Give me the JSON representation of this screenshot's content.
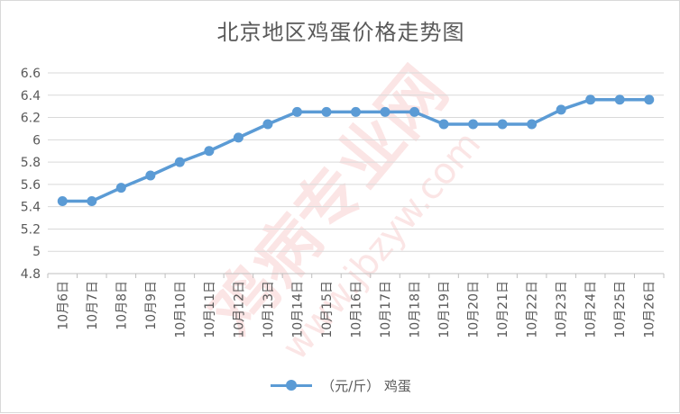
{
  "chart_data": {
    "type": "line",
    "title": "北京地区鸡蛋价格走势图",
    "categories": [
      "10月6日",
      "10月7日",
      "10月8日",
      "10月9日",
      "10月10日",
      "10月11日",
      "10月12日",
      "10月13日",
      "10月14日",
      "10月15日",
      "10月16日",
      "10月17日",
      "10月18日",
      "10月19日",
      "10月20日",
      "10月21日",
      "10月22日",
      "10月23日",
      "10月24日",
      "10月25日",
      "10月26日"
    ],
    "series": [
      {
        "name": "（元/斤） 鸡蛋",
        "values": [
          5.45,
          5.45,
          5.57,
          5.68,
          5.8,
          5.9,
          6.02,
          6.14,
          6.25,
          6.25,
          6.25,
          6.25,
          6.25,
          6.14,
          6.14,
          6.14,
          6.14,
          6.27,
          6.36,
          6.36,
          6.36
        ],
        "color": "#5b9bd5"
      }
    ],
    "ylim": [
      4.8,
      6.6
    ],
    "yticks": [
      "4.8",
      "5",
      "5.2",
      "5.4",
      "5.6",
      "5.8",
      "6",
      "6.2",
      "6.4",
      "6.6"
    ],
    "grid": true,
    "legend_position": "bottom"
  },
  "watermark": {
    "text_cn": "鸡病专业网",
    "text_url": "www.jbzyw.com"
  }
}
